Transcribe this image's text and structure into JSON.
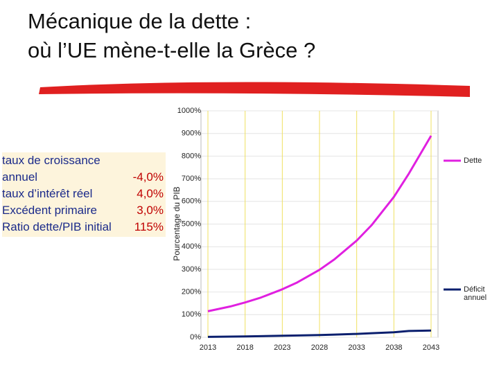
{
  "title_lines": [
    "Mécanique de la dette :",
    "où l’UE mène-t-elle la Grèce ?"
  ],
  "parameters": [
    {
      "label": "taux de croissance annuel",
      "value": "-4,0%"
    },
    {
      "label": "taux d’intérêt réel",
      "value": "4,0%"
    },
    {
      "label": "Excédent primaire",
      "value": "3,0%"
    },
    {
      "label": "Ratio dette/PIB initial",
      "value": "115%"
    }
  ],
  "chart_data": {
    "type": "line",
    "y_label": "Pourcentage du PIB",
    "x": [
      2013,
      2016,
      2018,
      2020,
      2023,
      2025,
      2028,
      2030,
      2033,
      2035,
      2038,
      2040,
      2043
    ],
    "series": [
      {
        "name": "Dette",
        "color": "#e020e0",
        "values": [
          115,
          136,
          154,
          174,
          212,
          242,
          298,
          344,
          427,
          495,
          620,
          722,
          890
        ]
      },
      {
        "name": "Déficit annuel",
        "color": "#0a1f6e",
        "values": [
          2,
          3,
          4,
          5,
          7,
          8,
          10,
          12,
          15,
          18,
          22,
          28,
          30
        ]
      }
    ],
    "xlim": [
      2013,
      2043
    ],
    "xticks": [
      2013,
      2018,
      2023,
      2028,
      2033,
      2038,
      2043
    ],
    "ylim": [
      0,
      1000
    ],
    "yticks": [
      {
        "value": 0,
        "label": "0%"
      },
      {
        "value": 100,
        "label": "100%"
      },
      {
        "value": 200,
        "label": "200%"
      },
      {
        "value": 300,
        "label": "300%"
      },
      {
        "value": 400,
        "label": "400%"
      },
      {
        "value": 500,
        "label": "500%"
      },
      {
        "value": 600,
        "label": "600%"
      },
      {
        "value": 700,
        "label": "700%"
      },
      {
        "value": 800,
        "label": "800%"
      },
      {
        "value": 900,
        "label": "900%"
      },
      {
        "value": 1000,
        "label": "1000%"
      }
    ],
    "grid": true
  }
}
